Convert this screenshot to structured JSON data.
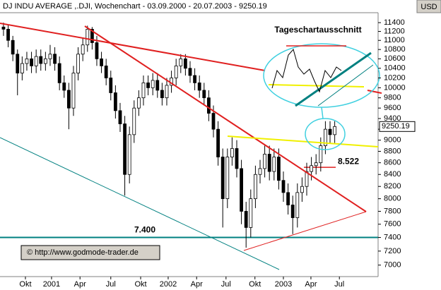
{
  "chart_data": {
    "type": "candlestick",
    "title": "DJ INDU AVERAGE ,.DJI, Wochenchart - 03.09.2000 - 20.07.2003 - 9250.19",
    "unit": "USD",
    "inset_title": "Tageschartausschnitt",
    "copyright": "© http://www.godmode-trader.de",
    "log": true,
    "up_color": "#ffffff",
    "down_color": "#000000",
    "ylim": [
      6840,
      11630
    ],
    "yticks": [
      7000,
      7200,
      7400,
      7600,
      7800,
      8000,
      8200,
      8400,
      8600,
      8800,
      9000,
      9200,
      9400,
      9600,
      9800,
      10000,
      10200,
      10400,
      10600,
      10800,
      11000,
      11200,
      11400
    ],
    "xlim": [
      -0.75,
      80.3
    ],
    "xticks": [
      {
        "value": 4.7,
        "label": "Okt"
      },
      {
        "value": 10.3,
        "label": "2001"
      },
      {
        "value": 16.4,
        "label": "Apr"
      },
      {
        "value": 23,
        "label": "Jul"
      },
      {
        "value": 29.4,
        "label": "Okt"
      },
      {
        "value": 35.3,
        "label": "2002"
      },
      {
        "value": 41.4,
        "label": "Apr"
      },
      {
        "value": 47.7,
        "label": "Jul"
      },
      {
        "value": 53.9,
        "label": "Okt"
      },
      {
        "value": 60,
        "label": "2003"
      },
      {
        "value": 65.9,
        "label": "Apr"
      },
      {
        "value": 72,
        "label": "Jul"
      }
    ],
    "levels": [
      {
        "value": 7400,
        "label": "7.400",
        "color": "#008080"
      },
      {
        "value": 8522,
        "label": "8.522",
        "color": "#e02020"
      }
    ],
    "open": [
      11300,
      11250,
      11000,
      10700,
      10300,
      10500,
      10600,
      10450,
      10650,
      10500,
      10600,
      10700,
      10500,
      10100,
      9950,
      9600,
      10300,
      10700,
      10900,
      11250,
      10950,
      10600,
      10450,
      10200,
      9900,
      9550,
      9300,
      8400,
      9100,
      9600,
      9800,
      10100,
      10000,
      10150,
      9950,
      9800,
      10050,
      10200,
      10450,
      10600,
      10400,
      10250,
      10100,
      9950,
      9800,
      9500,
      9200,
      8700,
      8000,
      8700,
      8850,
      8500,
      7800,
      7550,
      8000,
      8400,
      8500,
      8750,
      8450,
      8700,
      8300,
      8100,
      7900,
      7700,
      8100,
      8200,
      8450,
      8550,
      8600,
      8900,
      9200,
      9100
    ],
    "high": [
      11400,
      11350,
      11100,
      10800,
      10650,
      10750,
      10750,
      10800,
      10800,
      10750,
      10900,
      10850,
      10650,
      10250,
      10100,
      10450,
      10850,
      11050,
      11330,
      11300,
      11100,
      10750,
      10600,
      10350,
      10050,
      9700,
      9450,
      9250,
      9750,
      9950,
      10250,
      10250,
      10300,
      10300,
      10100,
      10200,
      10350,
      10600,
      10700,
      10700,
      10550,
      10400,
      10250,
      10100,
      9950,
      9650,
      9350,
      8850,
      8850,
      9050,
      9000,
      8650,
      7950,
      8150,
      8550,
      8650,
      8900,
      8900,
      8850,
      8850,
      8450,
      8250,
      8050,
      8250,
      8350,
      8600,
      8700,
      8750,
      9050,
      9350,
      9350,
      9350
    ],
    "low": [
      11100,
      10850,
      10550,
      9850,
      10150,
      10350,
      10300,
      10300,
      10350,
      10350,
      10450,
      10350,
      9950,
      9800,
      9200,
      9450,
      10150,
      10550,
      10750,
      10800,
      10450,
      10300,
      10050,
      9750,
      9400,
      9150,
      8050,
      8250,
      8950,
      9450,
      9650,
      9850,
      9850,
      9800,
      9650,
      9650,
      9900,
      10050,
      10300,
      10250,
      10100,
      9950,
      9800,
      9650,
      9350,
      9050,
      8550,
      7550,
      7850,
      8550,
      8350,
      7600,
      7250,
      7400,
      7850,
      8250,
      8350,
      8300,
      8300,
      8150,
      7950,
      7750,
      7450,
      7550,
      7950,
      8050,
      8300,
      8400,
      8450,
      8750,
      8950,
      8950
    ],
    "close": [
      11250,
      11000,
      10700,
      10300,
      10500,
      10600,
      10450,
      10650,
      10500,
      10600,
      10700,
      10500,
      10100,
      9950,
      9600,
      10300,
      10700,
      10900,
      11250,
      10950,
      10600,
      10450,
      10200,
      9900,
      9550,
      9300,
      8400,
      9100,
      9600,
      9800,
      10100,
      10000,
      10150,
      9950,
      9800,
      10050,
      10200,
      10450,
      10600,
      10400,
      10250,
      10100,
      9950,
      9800,
      9500,
      9200,
      8700,
      8000,
      8700,
      8850,
      8500,
      7800,
      7550,
      8000,
      8400,
      8500,
      8750,
      8450,
      8700,
      8300,
      8100,
      7900,
      7700,
      8100,
      8200,
      8450,
      8550,
      8600,
      8900,
      9200,
      9100,
      9250.19
    ]
  }
}
